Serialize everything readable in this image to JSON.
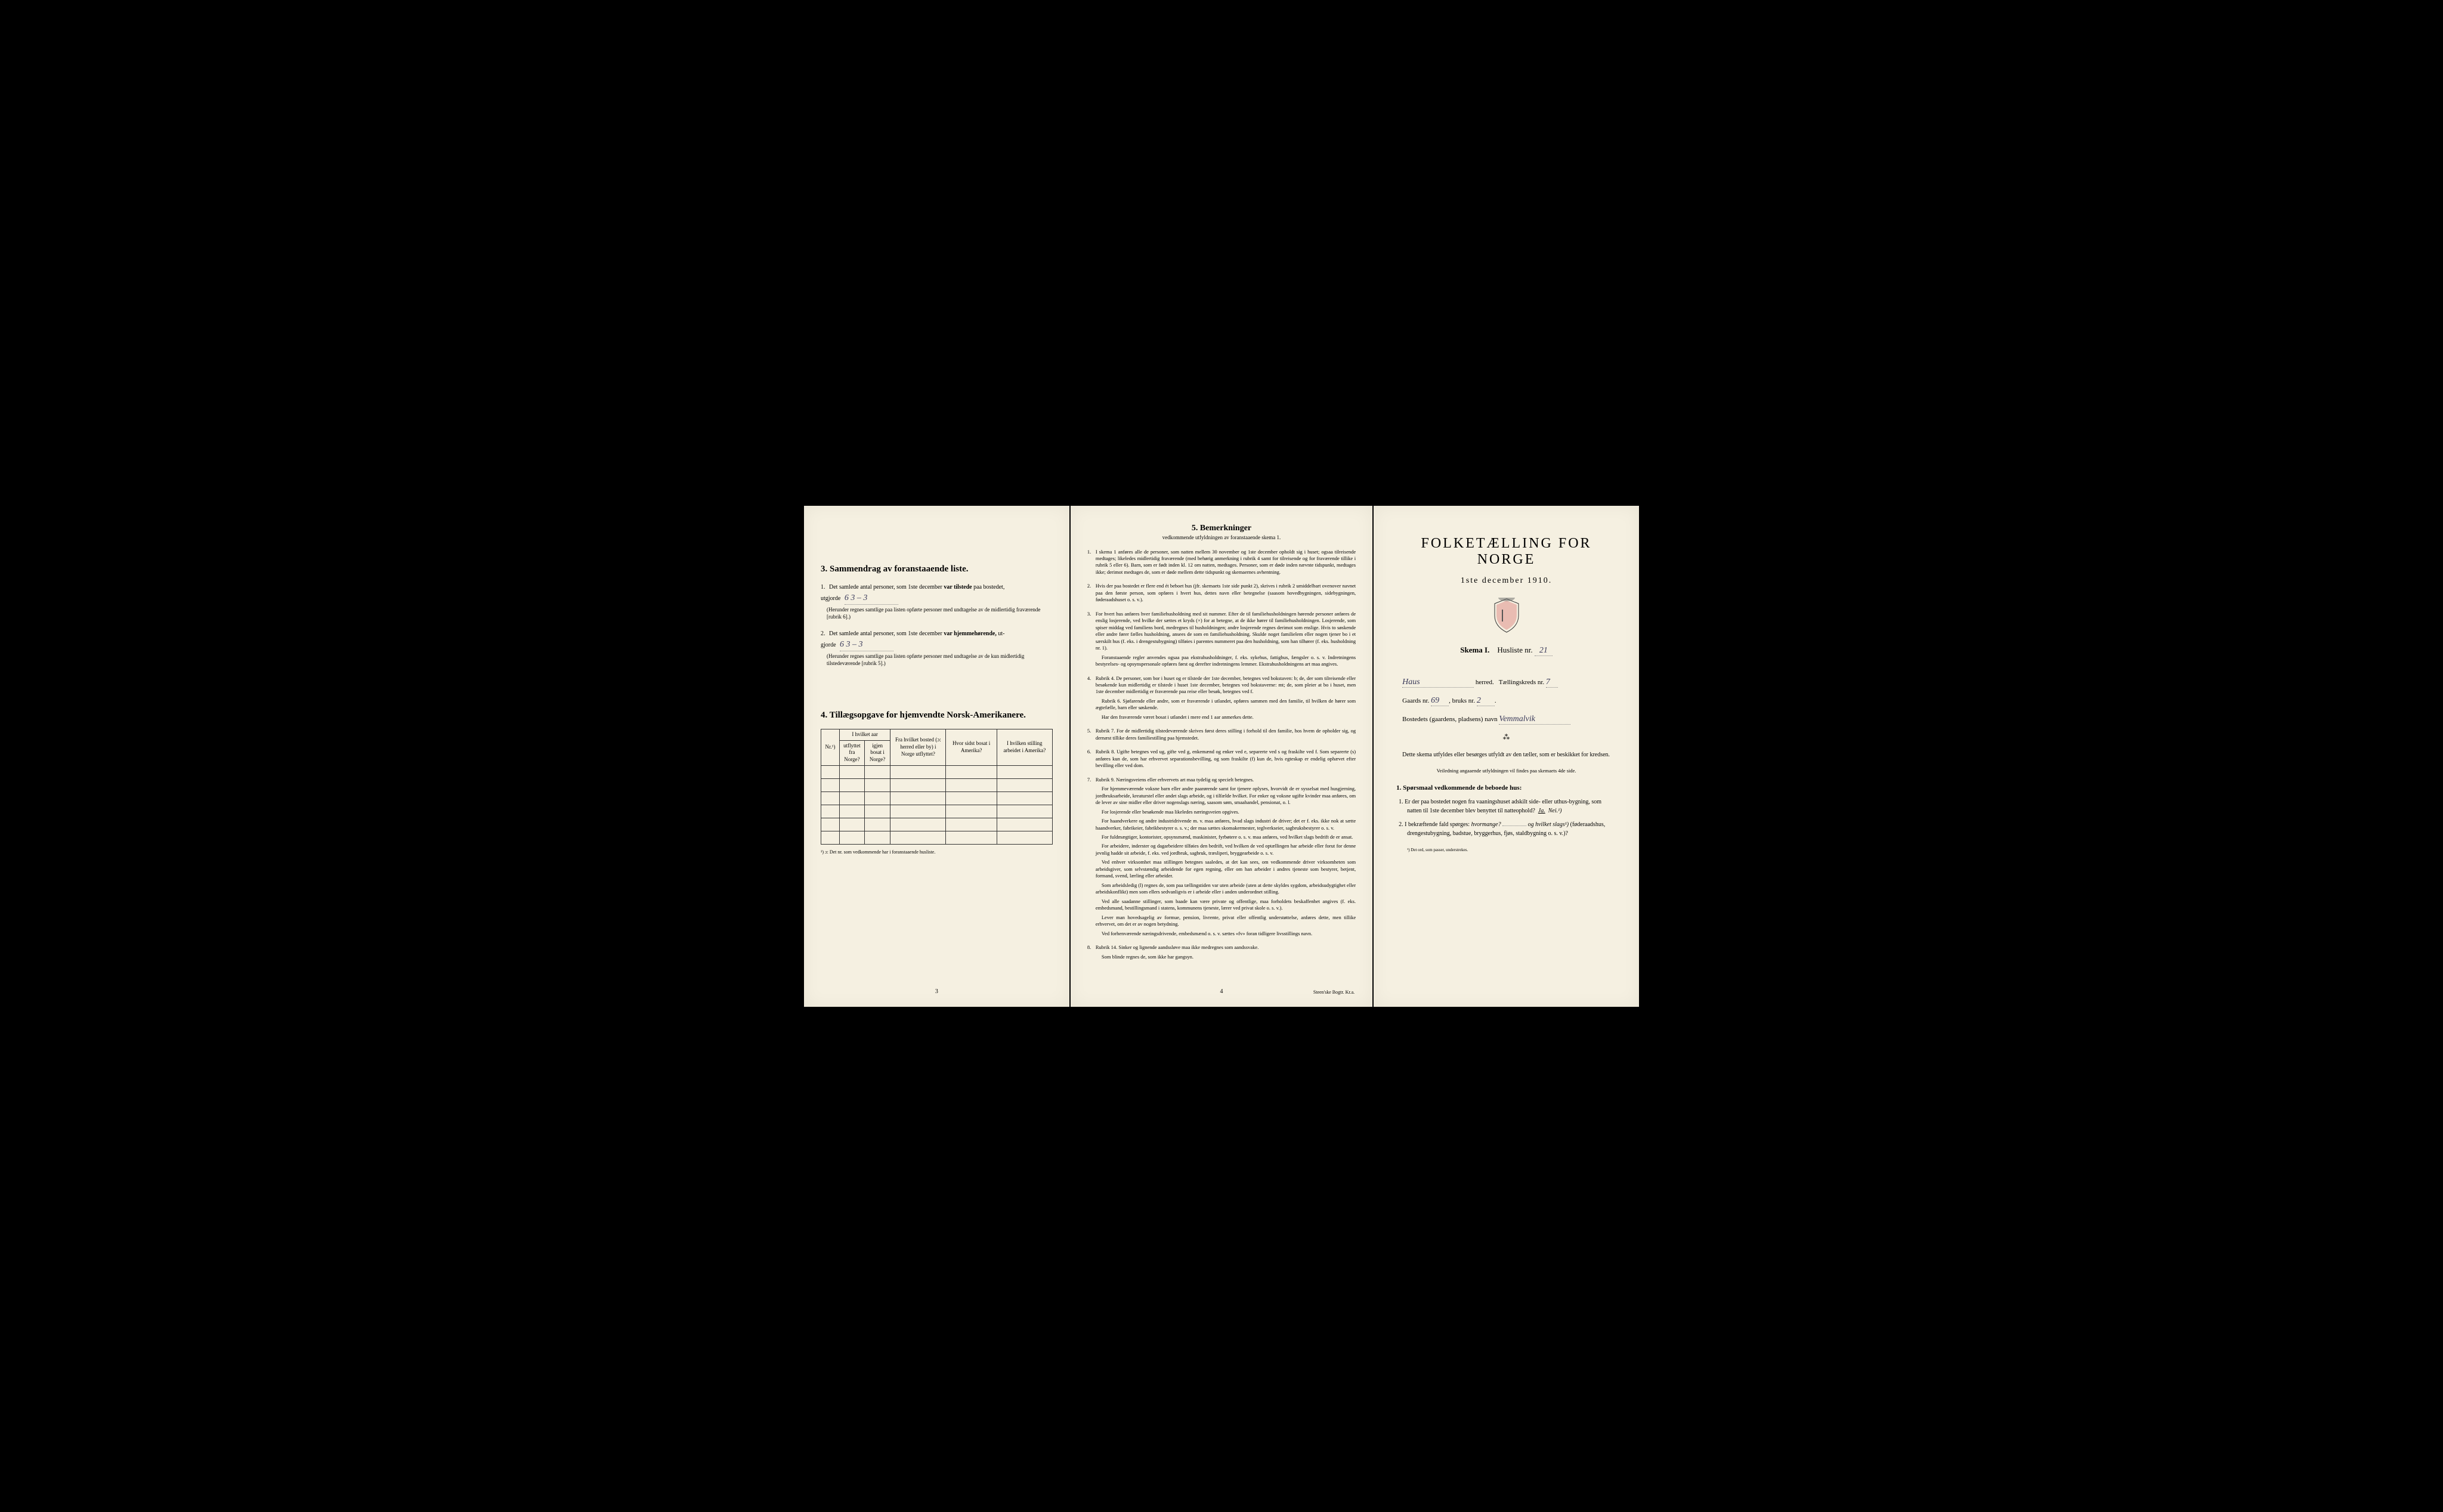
{
  "colors": {
    "paper": "#f5f0e1",
    "ink": "#2a2a2a",
    "handwriting": "#3a3a5a",
    "background": "#000000"
  },
  "page3": {
    "section3": {
      "number": "3.",
      "title": "Sammendrag av foranstaaende liste.",
      "item1": {
        "num": "1.",
        "text_a": "Det samlede antal personer, som 1ste december",
        "text_b": "var tilstede",
        "text_c": "paa bostedet,",
        "text_d": "utgjorde",
        "handwritten": "6   3 – 3",
        "note": "(Herunder regnes samtlige paa listen opførte personer med undtagelse av de midlertidig fraværende [rubrik 6].)"
      },
      "item2": {
        "num": "2.",
        "text_a": "Det samlede antal personer, som 1ste december",
        "text_b": "var hjemmehørende,",
        "text_c": "ut-",
        "text_d": "gjorde",
        "handwritten": "6   3 – 3",
        "note": "(Herunder regnes samtlige paa listen opførte personer med undtagelse av de kun midlertidig tilstedeværende [rubrik 5].)"
      }
    },
    "section4": {
      "number": "4.",
      "title": "Tillægsopgave for hjemvendte Norsk-Amerikanere.",
      "table": {
        "headers": {
          "col1": "Nr.¹)",
          "col2_top": "I hvilket aar",
          "col2a": "utflyttet fra Norge?",
          "col2b": "igjen bosat i Norge?",
          "col3": "Fra hvilket bosted (ɔ: herred eller by) i Norge utflyttet?",
          "col4": "Hvor sidst bosat i Amerika?",
          "col5": "I hvilken stilling arbeidet i Amerika?"
        },
        "rows": 6
      },
      "footnote": "¹) ɔ: Det nr. som vedkommende har i foranstaaende husliste."
    },
    "pagenum": "3"
  },
  "page4": {
    "title_num": "5.",
    "title": "Bemerkninger",
    "subtitle": "vedkommende utfyldningen av foranstaaende skema 1.",
    "remarks": [
      {
        "num": "1.",
        "paras": [
          "I skema 1 anføres alle de personer, som natten mellem 30 november og 1ste december opholdt sig i huset; ogsaa tilreisende medtages; likeledes midlertidig fraværende (med behørig anmerkning i rubrik 4 samt for tilreisende og for fraværende tillike i rubrik 5 eller 6). Barn, som er født inden kl. 12 om natten, medtages. Personer, som er døde inden nævnte tidspunkt, medtages ikke; derimot medtages de, som er døde mellem dette tidspunkt og skemaernes avhentning."
        ]
      },
      {
        "num": "2.",
        "paras": [
          "Hvis der paa bostedet er flere end ét beboet hus (jfr. skemaets 1ste side punkt 2), skrives i rubrik 2 umiddelbart ovenover navnet paa den første person, som opføres i hvert hus, dettes navn eller betegnelse (saasom hovedbygningen, sidebygningen, føderaadshuset o. s. v.)."
        ]
      },
      {
        "num": "3.",
        "paras": [
          "For hvert hus anføres hver familiehusholdning med sit nummer. Efter de til familiehusholdningen hørende personer anføres de enslig losjerende, ved hvilke der sættes et kryds (×) for at betegne, at de ikke hører til familiehusholdningen. Losjerende, som spiser middag ved familiens bord, medregnes til husholdningen; andre losjerende regnes derimot som enslige. Hvis to søskende eller andre fører fælles husholdning, ansees de som en familiehusholdning. Skulde noget familielem eller nogen tjener bo i et særskilt hus (f. eks. i drengestubygning) tilføies i parentes nummeret paa den husholdning, som han tilhører (f. eks. husholdning nr. 1).",
          "Foranstaaende regler anvendes ogsaa paa ekstrahusholdninger, f. eks. sykehus, fattighus, fængsler o. s. v. Indretningens bestyrelses- og opsynspersonale opføres først og derefter indretningens lemmer. Ekstrahusholdningens art maa angives."
        ]
      },
      {
        "num": "4.",
        "paras": [
          "Rubrik 4. De personer, som bor i huset og er tilstede der 1ste december, betegnes ved bokstaven: b; de, der som tilreisende eller besøkende kun midlertidig er tilstede i huset 1ste december, betegnes ved bokstaverne: mt; de, som pleier at bo i huset, men 1ste december midlertidig er fraværende paa reise eller besøk, betegnes ved f.",
          "Rubrik 6. Sjøfarende eller andre, som er fraværende i utlandet, opføres sammen med den familie, til hvilken de hører som ægtefælle, barn eller søskende.",
          "Har den fraværende været bosat i utlandet i mere end 1 aar anmerkes dette."
        ]
      },
      {
        "num": "5.",
        "paras": [
          "Rubrik 7. For de midlertidig tilstedeværende skrives først deres stilling i forhold til den familie, hos hvem de opholder sig, og dernæst tillike deres familiestilling paa hjemstedet."
        ]
      },
      {
        "num": "6.",
        "paras": [
          "Rubrik 8. Ugifte betegnes ved ug, gifte ved g, enkemænd og enker ved e, separerte ved s og fraskilte ved f. Som separerte (s) anføres kun de, som har erhvervet separationsbevilling, og som fraskilte (f) kun de, hvis egteskap er endelig ophævet efter bevilling eller ved dom."
        ]
      },
      {
        "num": "7.",
        "paras": [
          "Rubrik 9. Næringsveiens eller erhvervets art maa tydelig og specielt betegnes.",
          "For hjemmeværende voksne barn eller andre paarørende samt for tjenere oplyses, hvorvidt de er sysselsat med husgjerning, jordbruksarbeide, kreaturstel eller andet slags arbeide, og i tilfælde hvilket. For enker og voksne ugifte kvinder maa anføres, om de lever av sine midler eller driver nogenslags næring, saasom søm, smaahandel, pensionat, o. l.",
          "For losjerende eller besøkende maa likeledes næringsveien opgives.",
          "For haandverkere og andre industridrivende m. v. maa anføres, hvad slags industri de driver; det er f. eks. ikke nok at sætte haandverker, fabrikeier, fabrikbestyrer o. s. v.; der maa sættes skomakermester, teglverkseier, sagbruksbestyrer o. s. v.",
          "For fuldmægtiger, kontorister, opsynsmænd, maskinister, fyrbøtere o. s. v. maa anføres, ved hvilket slags bedrift de er ansat.",
          "For arbeidere, inderster og dagarbeidere tilføies den bedrift, ved hvilken de ved optællingen har arbeide eller forut for denne jevnlig hadde sit arbeide, f. eks. ved jordbruk, sagbruk, træsliperi, bryggearbeide o. s. v.",
          "Ved enhver virksomhet maa stillingen betegnes saaledes, at det kan sees, om vedkommende driver virksomheten som arbeidsgiver, som selvstændig arbeidende for egen regning, eller om han arbeider i andres tjeneste som bestyrer, betjent, formand, svend, lærling eller arbeider.",
          "Som arbeidsledig (l) regnes de, som paa tællingstiden var uten arbeide (uten at dette skyldes sygdom, arbeidsudygtighet eller arbeidskonflikt) men som ellers sedvanligvis er i arbeide eller i anden underordnet stilling.",
          "Ved alle saadanne stillinger, som baade kan være private og offentlige, maa forholdets beskaffenhet angives (f. eks. embedsmand, bestillingsmand i statens, kommunens tjeneste, lærer ved privat skole o. s. v.).",
          "Lever man hovedsagelig av formue, pension, livrente, privat eller offentlig understøttelse, anføres dette, men tillike erhvervet, om det er av nogen betydning.",
          "Ved forhenværende næringsdrivende, embedsmænd o. s. v. sættes «fv» foran tidligere livsstillings navn."
        ]
      },
      {
        "num": "8.",
        "paras": [
          "Rubrik 14. Sinker og lignende aandssløve maa ikke medregnes som aandssvake.",
          "Som blinde regnes de, som ikke har gangsyn."
        ]
      }
    ],
    "pagenum": "4",
    "printer": "Steen'ske Bogtr. Kr.a."
  },
  "page1": {
    "main_title": "FOLKETÆLLING FOR NORGE",
    "date": "1ste december 1910.",
    "skema_label": "Skema I.",
    "husliste_label": "Husliste nr.",
    "husliste_nr": "21",
    "herred_name": "Haus",
    "herred_label": "herred.",
    "tkreds_label": "Tællingskreds nr.",
    "tkreds_nr": "7",
    "gaards_label": "Gaards nr.",
    "gaards_nr": "69",
    "bruks_label": "bruks nr.",
    "bruks_nr": "2",
    "bosted_label": "Bostedets (gaardens, pladsens) navn",
    "bosted_name": "Vemmalvik",
    "instruction": "Dette skema utfyldes eller besørges utfyldt av den tæller, som er beskikket for kredsen.",
    "instruction_sub": "Veiledning angaaende utfyldningen vil findes paa skemaets 4de side.",
    "q_heading_num": "1.",
    "q_heading": "Spørsmaal vedkommende de beboede hus:",
    "q1": {
      "num": "1.",
      "text": "Er der paa bostedet nogen fra vaaningshuset adskilt side- eller uthus-bygning, som natten til 1ste december blev benyttet til natteophold?",
      "ja": "Ja.",
      "nei": "Nei.¹)"
    },
    "q2": {
      "num": "2.",
      "text_a": "I bekræftende fald spørges:",
      "text_b": "hvormange?",
      "text_c": "og hvilket slags¹)",
      "text_d": "(føderaadshus, drengestubygning, badstue, bryggerhus, fjøs, staldbygning o. s. v.)?"
    },
    "footnote": "¹) Det ord, som passer, understrekes."
  }
}
